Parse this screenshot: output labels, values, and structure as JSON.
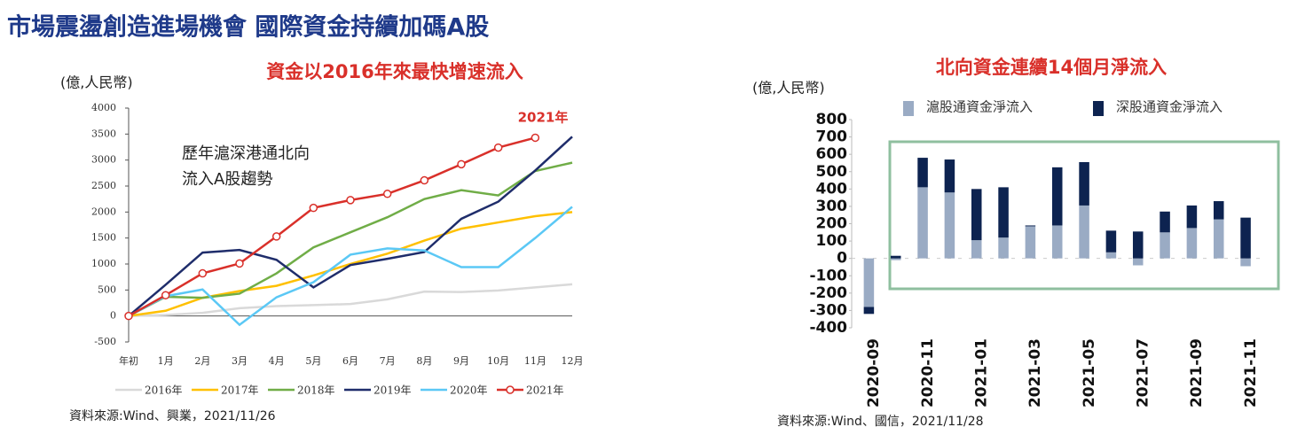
{
  "title": "市場震盪創造進場機會  國際資金持續加碼A股",
  "chart_data": [
    {
      "type": "line",
      "title": "資金以2016年來最快增速流入",
      "y_label": "(億,人民幣)",
      "annotations": [
        "歷年滬深港通北向",
        "流入A股趨勢",
        "2021年"
      ],
      "source": "資料來源:Wind、興業，2021/11/26",
      "categories": [
        "年初",
        "1月",
        "2月",
        "3月",
        "4月",
        "5月",
        "6月",
        "7月",
        "8月",
        "9月",
        "10月",
        "11月",
        "12月"
      ],
      "ylim": [
        -500,
        4000
      ],
      "yticks": [
        -500,
        0,
        500,
        1000,
        1500,
        2000,
        2500,
        3000,
        3500,
        4000
      ],
      "legend": "bottom",
      "series": [
        {
          "name": "2016年",
          "color": "#d9d9d9",
          "values": [
            0,
            20,
            60,
            150,
            190,
            210,
            230,
            320,
            470,
            460,
            490,
            550,
            610
          ]
        },
        {
          "name": "2017年",
          "color": "#ffc000",
          "values": [
            0,
            100,
            350,
            480,
            580,
            780,
            1000,
            1200,
            1450,
            1680,
            1800,
            1920,
            2000
          ]
        },
        {
          "name": "2018年",
          "color": "#70ad47",
          "values": [
            0,
            370,
            350,
            430,
            820,
            1320,
            1610,
            1900,
            2250,
            2420,
            2320,
            2790,
            2950
          ]
        },
        {
          "name": "2019年",
          "color": "#1f2d6b",
          "values": [
            0,
            600,
            1220,
            1270,
            1080,
            550,
            980,
            1100,
            1230,
            1870,
            2200,
            2800,
            3450
          ]
        },
        {
          "name": "2020年",
          "color": "#5bc8f5",
          "values": [
            0,
            380,
            510,
            -170,
            360,
            650,
            1180,
            1300,
            1260,
            940,
            940,
            1500,
            2100
          ]
        },
        {
          "name": "2021年",
          "color": "#d9302a",
          "marker": "circle",
          "values": [
            0,
            400,
            820,
            1010,
            1530,
            2080,
            2230,
            2350,
            2610,
            2920,
            3240,
            3430,
            null
          ]
        }
      ]
    },
    {
      "type": "stacked_bar",
      "title": "北向資金連續14個月淨流入",
      "y_label": "(億,人民幣)",
      "source": "資料來源:Wind、國信，2021/11/28",
      "categories": [
        "2020-09",
        null,
        "2020-11",
        null,
        "2021-01",
        null,
        "2021-03",
        null,
        "2021-05",
        null,
        "2021-07",
        null,
        "2021-09",
        null,
        "2021-11"
      ],
      "ylim": [
        -400,
        800
      ],
      "yticks": [
        -400,
        -300,
        -200,
        -100,
        0,
        100,
        200,
        300,
        400,
        500,
        600,
        700,
        800
      ],
      "legend": "top",
      "series": [
        {
          "name": "滬股通資金淨流入",
          "color": "#9aabc4",
          "values": [
            -280,
            -10,
            410,
            380,
            105,
            120,
            185,
            190,
            305,
            35,
            -40,
            150,
            175,
            225,
            -45
          ]
        },
        {
          "name": "深股通資金淨流入",
          "color": "#0d2350",
          "values": [
            -40,
            15,
            170,
            190,
            295,
            290,
            5,
            335,
            250,
            125,
            155,
            120,
            130,
            105,
            235
          ]
        }
      ]
    }
  ]
}
